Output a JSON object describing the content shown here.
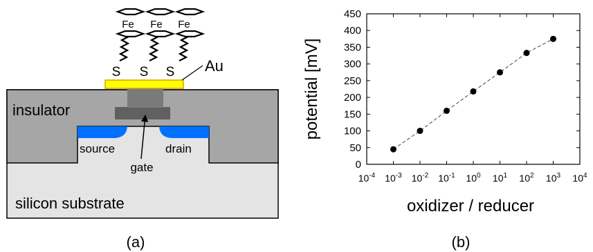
{
  "panel_a": {
    "caption": "(a)",
    "labels": {
      "fe": [
        "Fe",
        "Fe",
        "Fe"
      ],
      "s": [
        "S",
        "S",
        "S"
      ],
      "au": "Au",
      "insulator": "insulator",
      "source": "source",
      "drain": "drain",
      "gate": "gate",
      "substrate": "silicon substrate"
    },
    "colors": {
      "gold": "#ffff00",
      "gold_border": "#d8a000",
      "insulator": "#a6a6a6",
      "substrate": "#e4e4e4",
      "doped": "#0070ff",
      "gate_dark": "#606060",
      "gate_mid": "#7a7a7a"
    }
  },
  "panel_b": {
    "caption": "(b)",
    "chart_data": {
      "type": "scatter",
      "xlabel": "oxidizer / reducer",
      "ylabel": "potential  [mV]",
      "xscale": "log",
      "xlim_exp": [
        -4,
        4
      ],
      "ylim": [
        0,
        450
      ],
      "yticks": [
        0,
        50,
        100,
        150,
        200,
        250,
        300,
        350,
        400,
        450
      ],
      "xtick_base": "10",
      "xtick_exponents": [
        "-4",
        "-3",
        "-2",
        "-1",
        "0",
        "1",
        "2",
        "3",
        "4"
      ],
      "grid": false,
      "fit_line": "dashed",
      "points": [
        {
          "x_exp": -3,
          "y": 45
        },
        {
          "x_exp": -2,
          "y": 100
        },
        {
          "x_exp": -1,
          "y": 160
        },
        {
          "x_exp": 0,
          "y": 218
        },
        {
          "x_exp": 1,
          "y": 275
        },
        {
          "x_exp": 2,
          "y": 333
        },
        {
          "x_exp": 3,
          "y": 375
        }
      ]
    }
  }
}
